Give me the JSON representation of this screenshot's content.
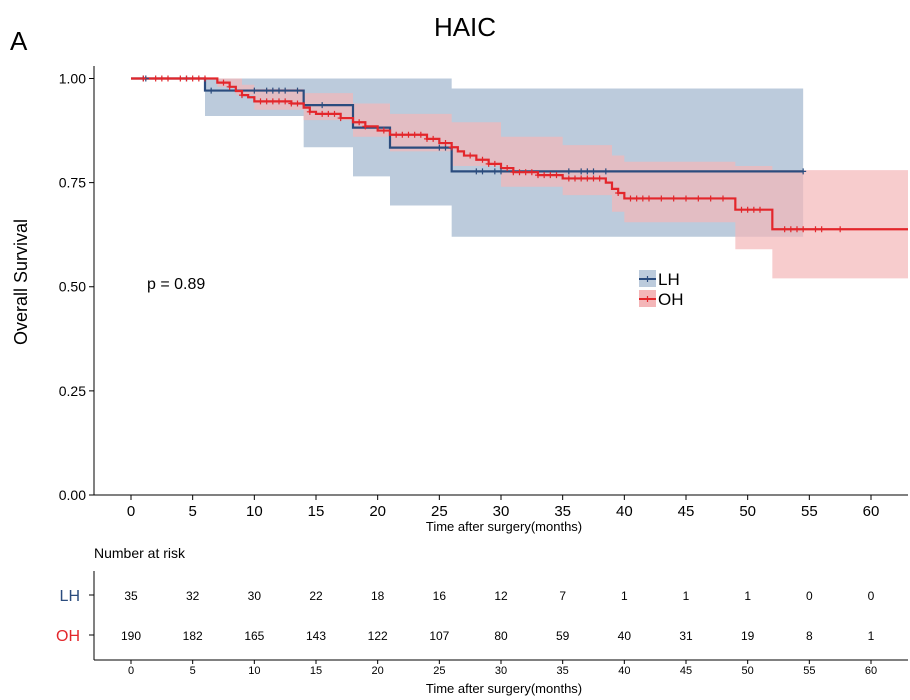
{
  "panel_label": "A",
  "chart_data": {
    "type": "line",
    "subtype": "kaplan-meier",
    "title": "HAIC",
    "xlabel": "Time after surgery(months)",
    "ylabel": "Overall Survival",
    "xlim": [
      -3,
      63
    ],
    "ylim": [
      0,
      1.03
    ],
    "x_ticks": [
      0,
      5,
      10,
      15,
      20,
      25,
      30,
      35,
      40,
      45,
      50,
      55,
      60
    ],
    "y_ticks": [
      0.0,
      0.25,
      0.5,
      0.75,
      1.0
    ],
    "y_tick_labels": [
      "0.00",
      "0.25",
      "0.50",
      "0.75",
      "1.00"
    ],
    "annotation": "p = 0.89",
    "legend_position": "right-middle",
    "series": [
      {
        "name": "LH",
        "color": "#2b4c7e",
        "band_color": "#bccbdc",
        "steps": [
          [
            0,
            1.0
          ],
          [
            6,
            0.971
          ],
          [
            14,
            0.936
          ],
          [
            18,
            0.882
          ],
          [
            21,
            0.834
          ],
          [
            26,
            0.777
          ],
          [
            54.5,
            0.777
          ]
        ],
        "ci_lower": [
          [
            0,
            1.0
          ],
          [
            6,
            0.91
          ],
          [
            14,
            0.835
          ],
          [
            18,
            0.765
          ],
          [
            21,
            0.695
          ],
          [
            26,
            0.62
          ],
          [
            54.5,
            0.62
          ]
        ],
        "ci_upper": [
          [
            0,
            1.0
          ],
          [
            6,
            1.0
          ],
          [
            26,
            0.976
          ],
          [
            54.5,
            0.976
          ]
        ],
        "censor_times": [
          1,
          1.2,
          4.5,
          6.5,
          10,
          11,
          11.5,
          12,
          12.5,
          13.5,
          15.5,
          25,
          25.5,
          28,
          28.5,
          29.5,
          30,
          35.5,
          36.5,
          37,
          37.5,
          38.5,
          54.5
        ]
      },
      {
        "name": "OH",
        "color": "#e3262b",
        "band_color": "#f4b6b8",
        "steps": [
          [
            0,
            1.0
          ],
          [
            7,
            0.99
          ],
          [
            8,
            0.98
          ],
          [
            8.5,
            0.97
          ],
          [
            9,
            0.96
          ],
          [
            9.5,
            0.955
          ],
          [
            10,
            0.945
          ],
          [
            13,
            0.94
          ],
          [
            14,
            0.93
          ],
          [
            14.5,
            0.92
          ],
          [
            15,
            0.915
          ],
          [
            17,
            0.905
          ],
          [
            18,
            0.895
          ],
          [
            19,
            0.885
          ],
          [
            20,
            0.875
          ],
          [
            21,
            0.865
          ],
          [
            24,
            0.855
          ],
          [
            25,
            0.845
          ],
          [
            26,
            0.835
          ],
          [
            26.5,
            0.825
          ],
          [
            27,
            0.815
          ],
          [
            28,
            0.805
          ],
          [
            29,
            0.795
          ],
          [
            30,
            0.785
          ],
          [
            31,
            0.775
          ],
          [
            33,
            0.768
          ],
          [
            35,
            0.76
          ],
          [
            38.5,
            0.75
          ],
          [
            39,
            0.735
          ],
          [
            39.5,
            0.725
          ],
          [
            40,
            0.712
          ],
          [
            49,
            0.685
          ],
          [
            52,
            0.638
          ],
          [
            63,
            0.638
          ]
        ],
        "ci_lower": [
          [
            0,
            1.0
          ],
          [
            7,
            0.98
          ],
          [
            8.5,
            0.96
          ],
          [
            10,
            0.925
          ],
          [
            14,
            0.9
          ],
          [
            18,
            0.86
          ],
          [
            21,
            0.825
          ],
          [
            26,
            0.79
          ],
          [
            30,
            0.74
          ],
          [
            35,
            0.72
          ],
          [
            39,
            0.68
          ],
          [
            40,
            0.655
          ],
          [
            49,
            0.59
          ],
          [
            52,
            0.52
          ],
          [
            63,
            0.52
          ]
        ],
        "ci_upper": [
          [
            0,
            1.0
          ],
          [
            7,
            1.0
          ],
          [
            9,
            0.985
          ],
          [
            10,
            0.975
          ],
          [
            14,
            0.965
          ],
          [
            18,
            0.94
          ],
          [
            21,
            0.915
          ],
          [
            26,
            0.895
          ],
          [
            30,
            0.86
          ],
          [
            35,
            0.84
          ],
          [
            39,
            0.815
          ],
          [
            40,
            0.8
          ],
          [
            49,
            0.79
          ],
          [
            52,
            0.78
          ],
          [
            63,
            0.78
          ]
        ],
        "censor_times": [
          1,
          2,
          2.5,
          3,
          4,
          4.5,
          5,
          5.5,
          6,
          7.5,
          8,
          9,
          10.5,
          11,
          11.5,
          12,
          12.5,
          13,
          13.5,
          14.5,
          15.5,
          16,
          16.5,
          17,
          18.5,
          19,
          20.5,
          21.5,
          22,
          22.5,
          23,
          23.5,
          24,
          24.5,
          25.5,
          26,
          27.5,
          28.5,
          29,
          29.5,
          30.5,
          31,
          31.5,
          32,
          32.5,
          33,
          33.5,
          34,
          34.5,
          35.5,
          36,
          36.5,
          37,
          37.5,
          38,
          39.5,
          40.5,
          41,
          41.5,
          42,
          43,
          44,
          45,
          46,
          47,
          48,
          49.5,
          50,
          50.5,
          51,
          53,
          53.5,
          54,
          54.5,
          55.5,
          56,
          57.5
        ]
      }
    ]
  },
  "risk_table": {
    "title": "Number at risk",
    "xlabel": "Time after surgery(months)",
    "times": [
      0,
      5,
      10,
      15,
      20,
      25,
      30,
      35,
      40,
      45,
      50,
      55,
      60
    ],
    "rows": [
      {
        "label": "LH",
        "color": "#2b4c7e",
        "values": [
          35,
          32,
          30,
          22,
          18,
          16,
          12,
          7,
          1,
          1,
          1,
          0,
          0
        ]
      },
      {
        "label": "OH",
        "color": "#e3262b",
        "values": [
          190,
          182,
          165,
          143,
          122,
          107,
          80,
          59,
          40,
          31,
          19,
          8,
          1
        ]
      }
    ]
  }
}
